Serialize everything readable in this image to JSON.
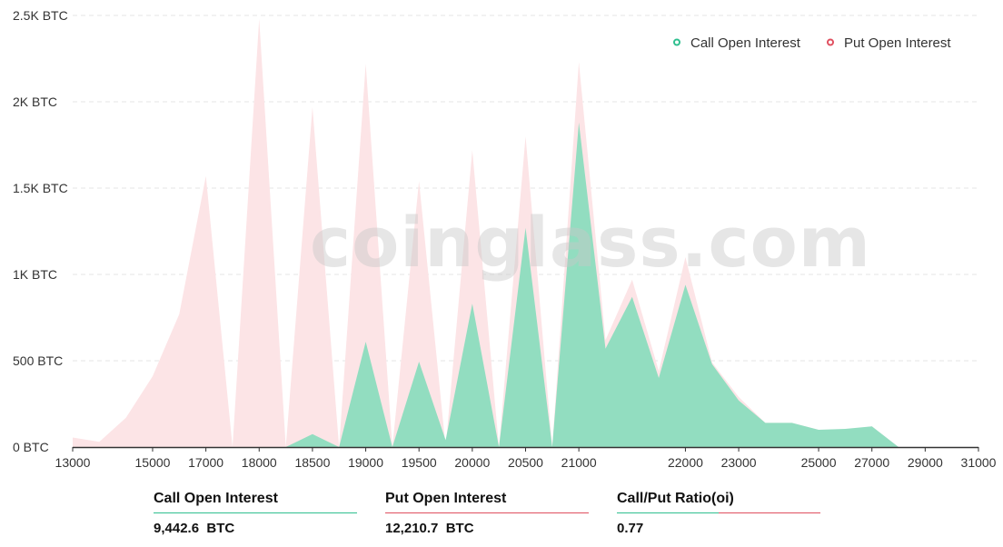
{
  "chart_data": {
    "type": "area",
    "x": [
      "13000",
      "13500",
      "14000",
      "15000",
      "16000",
      "17000",
      "17500",
      "18000",
      "18250",
      "18500",
      "18750",
      "19000",
      "19250",
      "19500",
      "19750",
      "20000",
      "20250",
      "20500",
      "20750",
      "21000",
      "21250",
      "21500",
      "21750",
      "22000",
      "22500",
      "23000",
      "23500",
      "24000",
      "25000",
      "26000",
      "27000",
      "28000",
      "29000",
      "30000",
      "31000"
    ],
    "xticks": [
      "13000",
      "15000",
      "17000",
      "18000",
      "18500",
      "19000",
      "19500",
      "20000",
      "20500",
      "21000",
      "22000",
      "23000",
      "25000",
      "27000",
      "29000",
      "31000"
    ],
    "series": [
      {
        "name": "Put  Open Interest",
        "color": "#fce4e6",
        "values": [
          55,
          30,
          170,
          410,
          770,
          1570,
          0,
          2480,
          0,
          1970,
          0,
          2220,
          0,
          1540,
          0,
          1720,
          0,
          1800,
          0,
          2230,
          620,
          970,
          440,
          1100,
          490,
          290,
          140,
          140,
          100,
          100,
          120,
          0,
          0,
          0,
          0
        ]
      },
      {
        "name": "Call Open Interest",
        "color": "#92ddc0",
        "values": [
          0,
          0,
          0,
          0,
          0,
          0,
          0,
          0,
          0,
          75,
          0,
          610,
          0,
          495,
          40,
          830,
          0,
          1270,
          0,
          1880,
          570,
          870,
          400,
          940,
          480,
          270,
          140,
          140,
          100,
          105,
          120,
          0,
          0,
          0,
          0
        ]
      }
    ],
    "yticks": [
      "0 BTC",
      "500 BTC",
      "1K BTC",
      "1.5K BTC",
      "2K BTC",
      "2.5K BTC"
    ],
    "ylim": [
      0,
      2500
    ],
    "grid": true,
    "legend_position": "top-right"
  },
  "watermark": "coinglass.com",
  "legend": {
    "call_label": "Call Open Interest",
    "put_label": "Put  Open Interest",
    "call_color": "#2fbf8f",
    "put_color": "#e04f5f"
  },
  "stats": {
    "call_label": "Call Open Interest",
    "call_value": "9,442.6  BTC",
    "put_label": "Put Open Interest",
    "put_value": "12,210.7  BTC",
    "ratio_label": "Call/Put Ratio(oi)",
    "ratio_value": "0.77"
  }
}
